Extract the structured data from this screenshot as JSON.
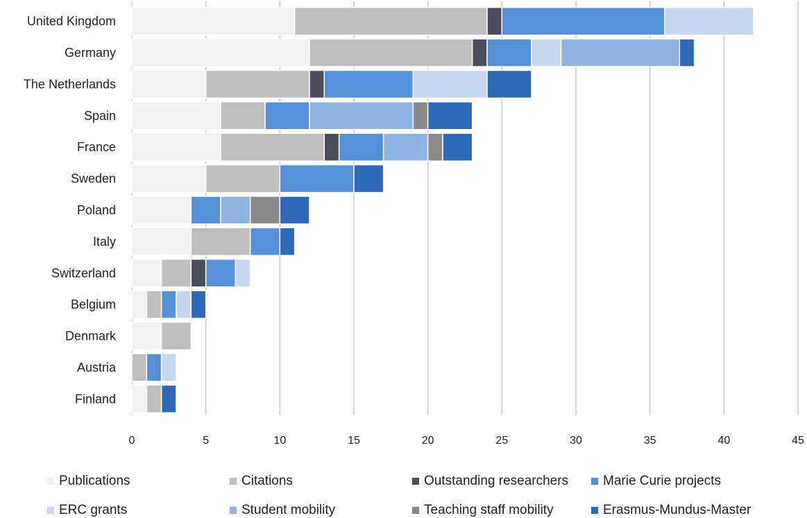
{
  "chart_data": {
    "type": "bar",
    "orientation": "horizontal",
    "stacked": true,
    "title": "",
    "xlabel": "",
    "ylabel": "",
    "xlim": [
      0,
      45
    ],
    "xticks": [
      "0",
      "5",
      "10",
      "15",
      "20",
      "25",
      "30",
      "35",
      "40",
      "45"
    ],
    "grid": "vertical",
    "legend_position": "bottom",
    "categories": [
      "United Kingdom",
      "Germany",
      "The Netherlands",
      "Spain",
      "France",
      "Sweden",
      "Poland",
      "Italy",
      "Switzerland",
      "Belgium",
      "Denmark",
      "Austria",
      "Finland"
    ],
    "series": [
      {
        "name": "Publications",
        "color": "#f2f2f2",
        "values": [
          11,
          12,
          5,
          6,
          6,
          5,
          4,
          4,
          2,
          1,
          2,
          0,
          1
        ]
      },
      {
        "name": "Citations",
        "color": "#bfbfbf",
        "values": [
          13,
          11,
          7,
          3,
          7,
          5,
          0,
          4,
          2,
          1,
          2,
          1,
          1
        ]
      },
      {
        "name": "Outstanding researchers",
        "color": "#4a4e5c",
        "values": [
          1,
          1,
          1,
          0,
          1,
          0,
          0,
          0,
          1,
          0,
          0,
          0,
          0
        ]
      },
      {
        "name": "Marie Curie projects",
        "color": "#5591d8",
        "values": [
          11,
          3,
          6,
          3,
          3,
          5,
          2,
          2,
          2,
          1,
          0,
          1,
          0
        ]
      },
      {
        "name": "ERC grants",
        "color": "#c6d8f0",
        "values": [
          6,
          2,
          5,
          0,
          0,
          0,
          0,
          0,
          1,
          1,
          0,
          1,
          0
        ]
      },
      {
        "name": "Student mobility",
        "color": "#8fb3e3",
        "values": [
          0,
          8,
          0,
          7,
          3,
          0,
          2,
          0,
          0,
          0,
          0,
          0,
          0
        ]
      },
      {
        "name": "Teaching staff mobility",
        "color": "#8a8a8a",
        "values": [
          0,
          0,
          0,
          1,
          1,
          0,
          2,
          0,
          0,
          0,
          0,
          0,
          0
        ]
      },
      {
        "name": "Erasmus-Mundus-Master",
        "color": "#2e69b7",
        "values": [
          0,
          1,
          3,
          3,
          2,
          2,
          2,
          1,
          0,
          1,
          0,
          0,
          1
        ]
      }
    ]
  }
}
